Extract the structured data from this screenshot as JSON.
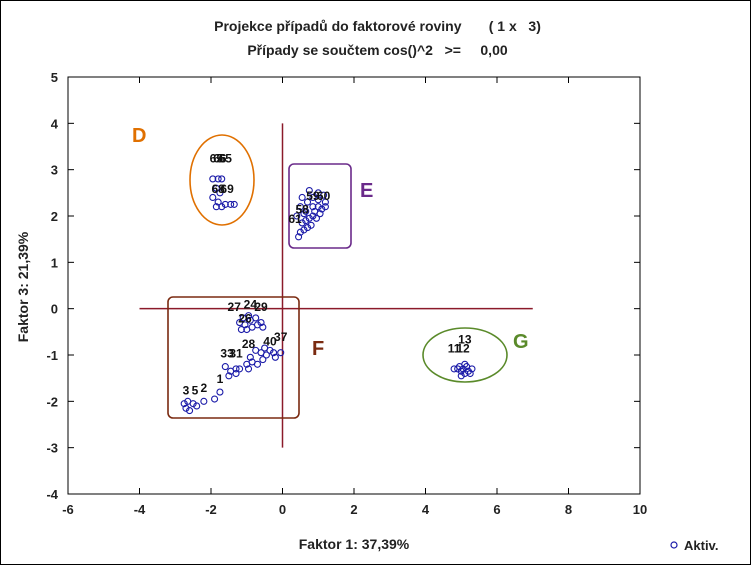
{
  "chart_data": {
    "type": "scatter",
    "title": "Projekce případů do faktorové roviny       ( 1 x   3)",
    "subtitle": "Případy se součtem cos()^2   >=     0,00",
    "xlabel": "Faktor 1: 37,39%",
    "ylabel": "Faktor 3: 21,39%",
    "xlim": [
      -6,
      10
    ],
    "ylim": [
      -4,
      5
    ],
    "xticks": [
      -6,
      -4,
      -2,
      0,
      2,
      4,
      6,
      8,
      10
    ],
    "yticks": [
      -4,
      -3,
      -2,
      -1,
      0,
      1,
      2,
      3,
      4,
      5
    ],
    "grid": false,
    "legend": {
      "placement": "bottom-right",
      "entries": [
        "Aktiv."
      ]
    },
    "series": [
      {
        "name": "Aktiv.",
        "color": "#1a1aa8",
        "points": [
          [
            -1.95,
            2.8
          ],
          [
            -1.8,
            2.8
          ],
          [
            -1.7,
            2.8
          ],
          [
            -1.85,
            2.6
          ],
          [
            -1.75,
            2.5
          ],
          [
            -1.95,
            2.4
          ],
          [
            -1.8,
            2.3
          ],
          [
            -1.6,
            2.25
          ],
          [
            -1.45,
            2.25
          ],
          [
            -1.35,
            2.25
          ],
          [
            -1.85,
            2.2
          ],
          [
            -1.7,
            2.2
          ],
          [
            0.45,
            1.55
          ],
          [
            0.5,
            1.65
          ],
          [
            0.6,
            1.7
          ],
          [
            0.7,
            1.75
          ],
          [
            0.55,
            1.85
          ],
          [
            0.65,
            1.9
          ],
          [
            0.75,
            1.95
          ],
          [
            0.85,
            2.0
          ],
          [
            0.9,
            2.1
          ],
          [
            0.6,
            2.05
          ],
          [
            0.8,
            1.8
          ],
          [
            0.95,
            1.95
          ],
          [
            1.05,
            2.05
          ],
          [
            1.1,
            2.15
          ],
          [
            1.2,
            2.2
          ],
          [
            0.4,
            2.0
          ],
          [
            0.5,
            2.2
          ],
          [
            0.7,
            2.3
          ],
          [
            0.85,
            2.4
          ],
          [
            1.0,
            2.35
          ],
          [
            0.55,
            2.4
          ],
          [
            0.75,
            2.55
          ],
          [
            1.0,
            2.5
          ],
          [
            1.15,
            2.45
          ],
          [
            1.2,
            2.3
          ],
          [
            0.65,
            2.1
          ],
          [
            0.85,
            2.2
          ],
          [
            1.0,
            2.2
          ],
          [
            -1.2,
            -0.3
          ],
          [
            -1.05,
            -0.35
          ],
          [
            -0.9,
            -0.25
          ],
          [
            -1.15,
            -0.45
          ],
          [
            -1.0,
            -0.45
          ],
          [
            -0.85,
            -0.4
          ],
          [
            -0.7,
            -0.35
          ],
          [
            -0.6,
            -0.3
          ],
          [
            -0.55,
            -0.4
          ],
          [
            -1.1,
            -0.2
          ],
          [
            -0.95,
            -0.15
          ],
          [
            -0.75,
            -0.2
          ],
          [
            -1.6,
            -1.25
          ],
          [
            -1.45,
            -1.35
          ],
          [
            -1.3,
            -1.4
          ],
          [
            -1.2,
            -1.3
          ],
          [
            -1.0,
            -1.2
          ],
          [
            -0.85,
            -1.15
          ],
          [
            -0.7,
            -1.2
          ],
          [
            -0.55,
            -1.1
          ],
          [
            -0.45,
            -1.0
          ],
          [
            -0.6,
            -0.95
          ],
          [
            -0.75,
            -0.9
          ],
          [
            -0.5,
            -0.85
          ],
          [
            -0.35,
            -0.9
          ],
          [
            -0.25,
            -0.95
          ],
          [
            -0.05,
            -0.95
          ],
          [
            -1.5,
            -1.45
          ],
          [
            -1.3,
            -1.3
          ],
          [
            -0.95,
            -1.3
          ],
          [
            -0.9,
            -1.05
          ],
          [
            -0.2,
            -1.05
          ],
          [
            -2.75,
            -2.05
          ],
          [
            -2.7,
            -2.15
          ],
          [
            -2.6,
            -2.2
          ],
          [
            -2.5,
            -2.05
          ],
          [
            -2.4,
            -2.1
          ],
          [
            -2.65,
            -2.0
          ],
          [
            -2.2,
            -2.0
          ],
          [
            -1.9,
            -1.95
          ],
          [
            -1.75,
            -1.8
          ],
          [
            4.8,
            -1.3
          ],
          [
            4.9,
            -1.3
          ],
          [
            5.0,
            -1.35
          ],
          [
            5.1,
            -1.4
          ],
          [
            5.2,
            -1.35
          ],
          [
            5.3,
            -1.3
          ],
          [
            4.95,
            -1.25
          ],
          [
            5.15,
            -1.25
          ],
          [
            5.05,
            -1.3
          ],
          [
            5.25,
            -1.4
          ],
          [
            5.1,
            -1.2
          ],
          [
            5.0,
            -1.45
          ]
        ]
      }
    ],
    "point_labels": [
      {
        "text": "65",
        "x": -1.85,
        "y": 3.15
      },
      {
        "text": "66",
        "x": -1.75,
        "y": 3.15
      },
      {
        "text": "65",
        "x": -1.6,
        "y": 3.15
      },
      {
        "text": "68",
        "x": -1.8,
        "y": 2.5
      },
      {
        "text": "69",
        "x": -1.55,
        "y": 2.5
      },
      {
        "text": "59",
        "x": 0.85,
        "y": 2.35
      },
      {
        "text": "58",
        "x": 0.55,
        "y": 2.05
      },
      {
        "text": "60",
        "x": 1.15,
        "y": 2.35
      },
      {
        "text": "61",
        "x": 0.35,
        "y": 1.85
      },
      {
        "text": "24",
        "x": -0.9,
        "y": 0.0
      },
      {
        "text": "29",
        "x": -0.6,
        "y": -0.05
      },
      {
        "text": "27",
        "x": -1.35,
        "y": -0.05
      },
      {
        "text": "26",
        "x": -1.05,
        "y": -0.3
      },
      {
        "text": "37",
        "x": -0.05,
        "y": -0.7
      },
      {
        "text": "40",
        "x": -0.35,
        "y": -0.8
      },
      {
        "text": "28",
        "x": -0.95,
        "y": -0.85
      },
      {
        "text": "33",
        "x": -1.55,
        "y": -1.05
      },
      {
        "text": "31",
        "x": -1.3,
        "y": -1.05
      },
      {
        "text": "1",
        "x": -1.75,
        "y": -1.6
      },
      {
        "text": "2",
        "x": -2.2,
        "y": -1.8
      },
      {
        "text": "5",
        "x": -2.45,
        "y": -1.85
      },
      {
        "text": "3",
        "x": -2.7,
        "y": -1.85
      },
      {
        "text": "13",
        "x": 5.1,
        "y": -0.75
      },
      {
        "text": "11",
        "x": 4.8,
        "y": -0.95
      },
      {
        "text": "12",
        "x": 5.05,
        "y": -0.95
      }
    ],
    "reference_lines": {
      "x": 0,
      "y": 0,
      "color": "#8b1a2a"
    },
    "group_annotations": [
      {
        "label": "D",
        "color": "#e07000",
        "shape": "ellipse"
      },
      {
        "label": "E",
        "color": "#6a2a8a",
        "shape": "rect"
      },
      {
        "label": "F",
        "color": "#7a2a10",
        "shape": "rect"
      },
      {
        "label": "G",
        "color": "#5a8a2a",
        "shape": "ellipse"
      }
    ]
  }
}
